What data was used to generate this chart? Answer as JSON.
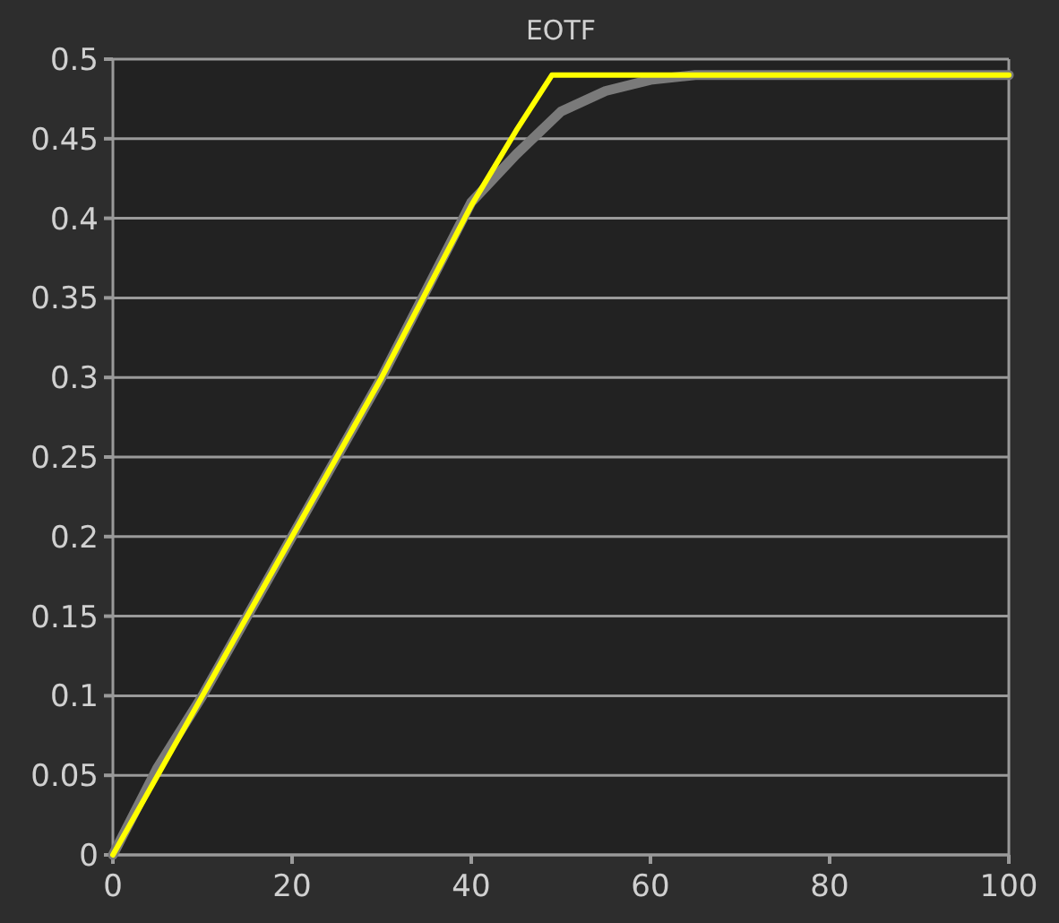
{
  "chart_data": {
    "type": "line",
    "title": "EOTF",
    "x": [
      0,
      5,
      10,
      20,
      30,
      40,
      45,
      50,
      55,
      60,
      65,
      100
    ],
    "series": [
      {
        "color": "#7a7a7a",
        "values": [
          0,
          0.055,
          0.1,
          0.2,
          0.3,
          0.41,
          0.44,
          0.467,
          0.48,
          0.487,
          0.49,
          0.49
        ]
      },
      {
        "color": "#ffff00",
        "x": [
          0,
          10,
          20,
          30,
          40,
          45,
          49,
          100
        ],
        "values": [
          0,
          0.1,
          0.2,
          0.3,
          0.408,
          0.455,
          0.49,
          0.49
        ]
      }
    ],
    "xlim": [
      0,
      100
    ],
    "xticks": [
      0,
      20,
      40,
      60,
      80,
      100
    ],
    "ylim": [
      0,
      0.5
    ],
    "yticks": [
      0,
      0.05,
      0.1,
      0.15,
      0.2,
      0.25,
      0.3,
      0.35,
      0.4,
      0.45,
      0.5
    ],
    "grid": "y",
    "marker": "none",
    "line_style": "solid"
  }
}
